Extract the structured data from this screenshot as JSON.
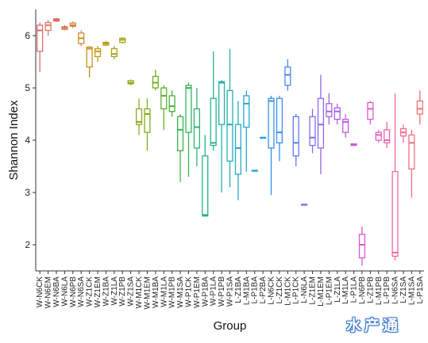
{
  "chart_data": {
    "type": "box",
    "xlabel": "Group",
    "ylabel": "Shannon Index",
    "ylim": [
      1.5,
      6.5
    ],
    "yticks": [
      2,
      3,
      4,
      5,
      6
    ],
    "grid": false,
    "categories": [
      {
        "label": "W-N6CK",
        "color": "#e06c72",
        "min": 5.3,
        "q1": 5.7,
        "median": 6.1,
        "q3": 6.2,
        "max": 6.25
      },
      {
        "label": "W-N6EM",
        "color": "#e27566",
        "min": 6.0,
        "q1": 6.1,
        "median": 6.2,
        "q3": 6.25,
        "max": 6.3
      },
      {
        "label": "W-N6BA",
        "color": "#d96e5a",
        "min": 6.26,
        "q1": 6.28,
        "median": 6.3,
        "q3": 6.32,
        "max": 6.34
      },
      {
        "label": "W-N6LA",
        "color": "#d8794a",
        "min": 6.1,
        "q1": 6.12,
        "median": 6.15,
        "q3": 6.17,
        "max": 6.2
      },
      {
        "label": "W-N6PB",
        "color": "#d6823c",
        "min": 6.15,
        "q1": 6.18,
        "median": 6.2,
        "q3": 6.24,
        "max": 6.27
      },
      {
        "label": "W-N6SA",
        "color": "#d38c2a",
        "min": 5.8,
        "q1": 5.85,
        "median": 5.95,
        "q3": 6.05,
        "max": 6.1
      },
      {
        "label": "W-Z1CK",
        "color": "#c98f1c",
        "min": 5.2,
        "q1": 5.4,
        "median": 5.75,
        "q3": 5.78,
        "max": 5.8
      },
      {
        "label": "W-Z1EM",
        "color": "#c29618",
        "min": 5.5,
        "q1": 5.6,
        "median": 5.7,
        "q3": 5.75,
        "max": 5.8
      },
      {
        "label": "W-Z1BA",
        "color": "#b79c18",
        "min": 5.8,
        "q1": 5.82,
        "median": 5.85,
        "q3": 5.87,
        "max": 5.9
      },
      {
        "label": "W-Z1LA",
        "color": "#ad9f18",
        "min": 5.55,
        "q1": 5.6,
        "median": 5.65,
        "q3": 5.75,
        "max": 5.8
      },
      {
        "label": "W-Z1PB",
        "color": "#a5a41c",
        "min": 5.85,
        "q1": 5.87,
        "median": 5.92,
        "q3": 5.95,
        "max": 5.97
      },
      {
        "label": "W-Z1SA",
        "color": "#98a71c",
        "min": 5.05,
        "q1": 5.08,
        "median": 5.1,
        "q3": 5.14,
        "max": 5.16
      },
      {
        "label": "W-M1CK",
        "color": "#8ba91c",
        "min": 4.1,
        "q1": 4.3,
        "median": 4.35,
        "q3": 4.6,
        "max": 4.8
      },
      {
        "label": "W-M1EM",
        "color": "#7eac1c",
        "min": 3.8,
        "q1": 4.15,
        "median": 4.5,
        "q3": 4.6,
        "max": 4.8
      },
      {
        "label": "W-M1BA",
        "color": "#70ae22",
        "min": 4.95,
        "q1": 5.0,
        "median": 5.1,
        "q3": 5.22,
        "max": 5.35
      },
      {
        "label": "W-M1LA",
        "color": "#5caf2c",
        "min": 4.2,
        "q1": 4.6,
        "median": 4.85,
        "q3": 5.0,
        "max": 5.05
      },
      {
        "label": "W-M1PB",
        "color": "#4bb138",
        "min": 4.45,
        "q1": 4.55,
        "median": 4.65,
        "q3": 4.85,
        "max": 4.95
      },
      {
        "label": "W-M1SA",
        "color": "#3db24a",
        "min": 3.2,
        "q1": 3.8,
        "median": 4.2,
        "q3": 4.45,
        "max": 4.5
      },
      {
        "label": "W-P1CK",
        "color": "#33b35e",
        "min": 3.3,
        "q1": 4.15,
        "median": 5.0,
        "q3": 5.05,
        "max": 5.1
      },
      {
        "label": "W-P1EM",
        "color": "#2cb470",
        "min": 3.5,
        "q1": 3.85,
        "median": 4.25,
        "q3": 4.6,
        "max": 5.0
      },
      {
        "label": "W-P1BA",
        "color": "#28b384",
        "min": 2.55,
        "q1": 2.55,
        "median": 2.57,
        "q3": 3.7,
        "max": 4.1
      },
      {
        "label": "W-P1LA",
        "color": "#26b195",
        "min": 3.8,
        "q1": 3.9,
        "median": 3.95,
        "q3": 4.8,
        "max": 5.7
      },
      {
        "label": "W-P1PB",
        "color": "#25b0a7",
        "min": 3.0,
        "q1": 4.3,
        "median": 5.1,
        "q3": 5.12,
        "max": 5.15
      },
      {
        "label": "W-P1SA",
        "color": "#24aeb6",
        "min": 3.1,
        "q1": 3.6,
        "median": 4.3,
        "q3": 4.95,
        "max": 5.75
      },
      {
        "label": "L-Z1BA",
        "color": "#24acc5",
        "min": 2.85,
        "q1": 3.35,
        "median": 3.85,
        "q3": 4.3,
        "max": 4.75
      },
      {
        "label": "L-M1BA",
        "color": "#23a9d3",
        "min": 3.4,
        "q1": 4.25,
        "median": 4.7,
        "q3": 4.85,
        "max": 4.95
      },
      {
        "label": "L-P1BA",
        "color": "#24a3df",
        "min": 3.42,
        "q1": 3.42,
        "median": 3.42,
        "q3": 3.42,
        "max": 3.42
      },
      {
        "label": "L-P2BA",
        "color": "#2a9ce6",
        "min": 4.05,
        "q1": 4.05,
        "median": 4.05,
        "q3": 4.05,
        "max": 4.05
      },
      {
        "label": "L-N6CK",
        "color": "#3394eb",
        "min": 2.95,
        "q1": 3.85,
        "median": 4.75,
        "q3": 4.8,
        "max": 4.85
      },
      {
        "label": "L-Z1CK",
        "color": "#3e8bf0",
        "min": 3.6,
        "q1": 3.95,
        "median": 4.15,
        "q3": 4.8,
        "max": 4.85
      },
      {
        "label": "L-M1CK",
        "color": "#4a84f3",
        "min": 4.95,
        "q1": 5.05,
        "median": 5.25,
        "q3": 5.4,
        "max": 5.55
      },
      {
        "label": "L-P1CK",
        "color": "#5a7bf4",
        "min": 3.5,
        "q1": 3.7,
        "median": 3.95,
        "q3": 4.45,
        "max": 4.5
      },
      {
        "label": "L-N6LA",
        "color": "#6b74f2",
        "min": 2.77,
        "q1": 2.77,
        "median": 2.77,
        "q3": 2.77,
        "max": 2.77
      },
      {
        "label": "L-Z1EM",
        "color": "#7d6eef",
        "min": 3.75,
        "q1": 3.9,
        "median": 4.05,
        "q3": 4.45,
        "max": 4.6
      },
      {
        "label": "L-M1EM",
        "color": "#8e68ec",
        "min": 3.35,
        "q1": 3.85,
        "median": 4.3,
        "q3": 4.8,
        "max": 5.25
      },
      {
        "label": "L-P1EM",
        "color": "#a063e9",
        "min": 4.3,
        "q1": 4.45,
        "median": 4.55,
        "q3": 4.7,
        "max": 4.9
      },
      {
        "label": "L-Z1LA",
        "color": "#b15ee6",
        "min": 4.3,
        "q1": 4.4,
        "median": 4.55,
        "q3": 4.62,
        "max": 4.7
      },
      {
        "label": "L-M1LA",
        "color": "#c15ae2",
        "min": 4.05,
        "q1": 4.15,
        "median": 4.35,
        "q3": 4.4,
        "max": 4.5
      },
      {
        "label": "L-P1LA",
        "color": "#cd58dc",
        "min": 3.9,
        "q1": 3.9,
        "median": 3.92,
        "q3": 3.93,
        "max": 3.94
      },
      {
        "label": "L-N6PB",
        "color": "#d959d3",
        "min": 1.6,
        "q1": 1.75,
        "median": 2.0,
        "q3": 2.2,
        "max": 2.35
      },
      {
        "label": "L-Z1PB",
        "color": "#e25bc7",
        "min": 4.3,
        "q1": 4.4,
        "median": 4.6,
        "q3": 4.72,
        "max": 4.75
      },
      {
        "label": "L-M1PB",
        "color": "#e95fba",
        "min": 3.95,
        "q1": 4.0,
        "median": 4.1,
        "q3": 4.15,
        "max": 4.2
      },
      {
        "label": "L-P1PB",
        "color": "#ee63ad",
        "min": 3.85,
        "q1": 3.95,
        "median": 4.0,
        "q3": 4.2,
        "max": 4.35
      },
      {
        "label": "L-N6SA",
        "color": "#f0679f",
        "min": 1.7,
        "q1": 1.78,
        "median": 1.85,
        "q3": 3.4,
        "max": 4.9
      },
      {
        "label": "L-Z1SA",
        "color": "#f16b91",
        "min": 3.95,
        "q1": 4.08,
        "median": 4.15,
        "q3": 4.22,
        "max": 4.3
      },
      {
        "label": "L-M1SA",
        "color": "#f06f84",
        "min": 2.9,
        "q1": 3.45,
        "median": 3.95,
        "q3": 4.1,
        "max": 4.2
      },
      {
        "label": "L-P1SA",
        "color": "#ee7278",
        "min": 4.3,
        "q1": 4.5,
        "median": 4.6,
        "q3": 4.75,
        "max": 4.95
      }
    ]
  },
  "watermark": "水产通"
}
